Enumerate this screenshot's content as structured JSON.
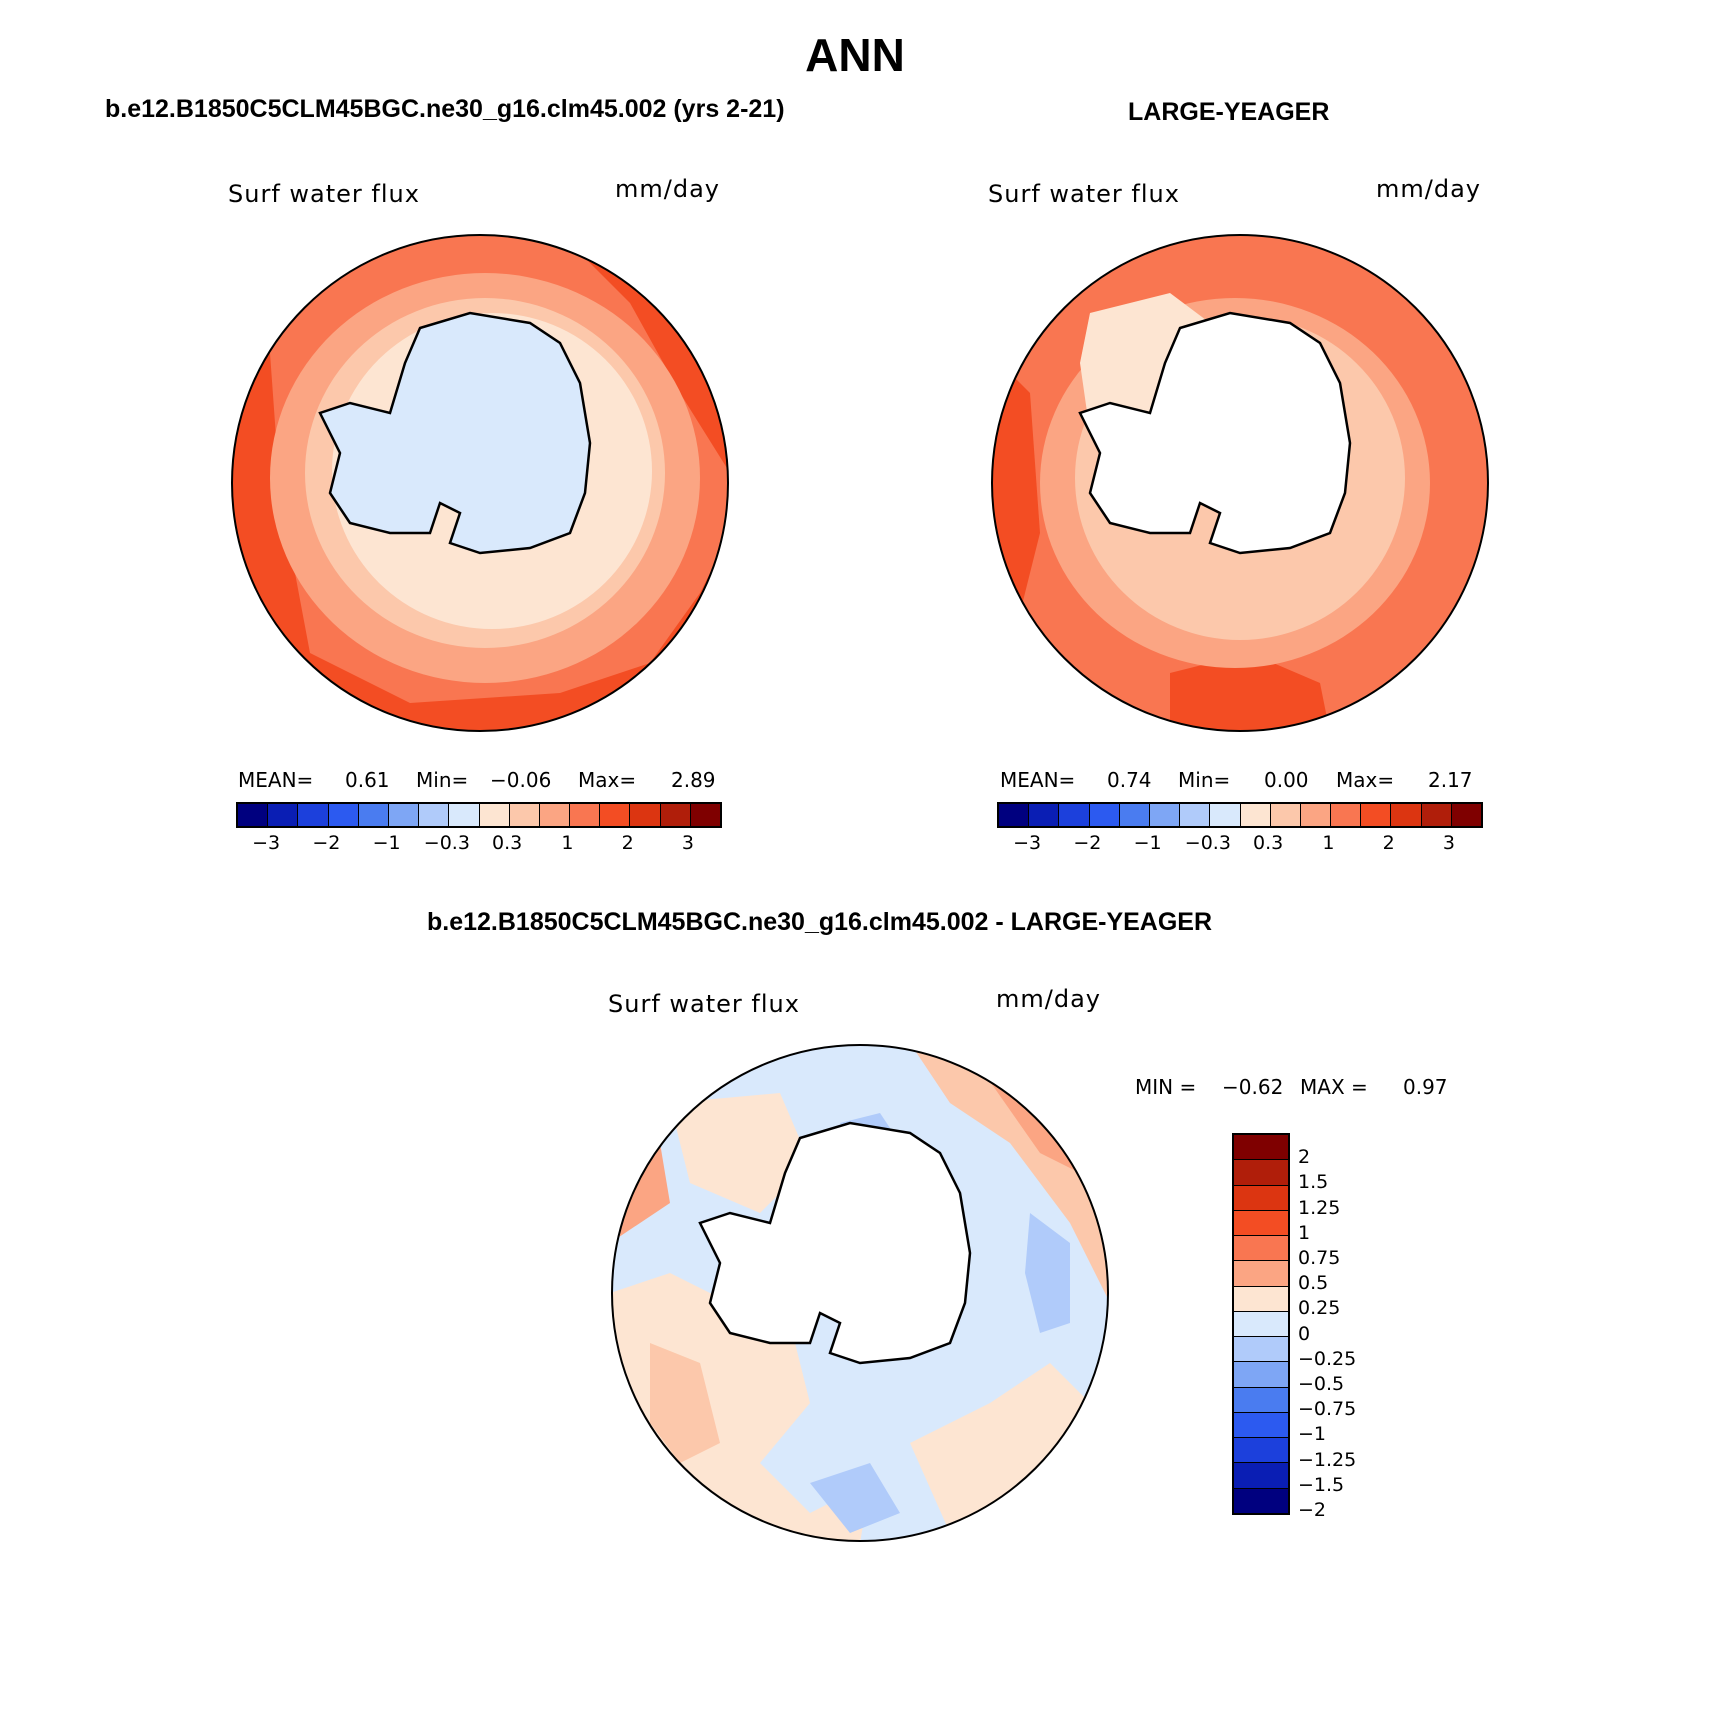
{
  "title": "ANN",
  "panels": [
    {
      "title": "b.e12.B1850C5CLM45BGC.ne30_g16.clm45.002 (yrs 2-21)",
      "variable": "Surf water flux",
      "units": "mm/day",
      "stats": {
        "mean_label": "MEAN=",
        "mean": "0.61",
        "min_label": "Min=",
        "min": "−0.06",
        "max_label": "Max=",
        "max": "2.89"
      },
      "ticks": [
        "−3",
        "−2",
        "−1",
        "−0.3",
        "0.3",
        "1",
        "2",
        "3"
      ]
    },
    {
      "title": "LARGE-YEAGER",
      "variable": "Surf water flux",
      "units": "mm/day",
      "stats": {
        "mean_label": "MEAN=",
        "mean": "0.74",
        "min_label": "Min=",
        "min": "0.00",
        "max_label": "Max=",
        "max": "2.17"
      },
      "ticks": [
        "−3",
        "−2",
        "−1",
        "−0.3",
        "0.3",
        "1",
        "2",
        "3"
      ]
    }
  ],
  "diff": {
    "title": "b.e12.B1850C5CLM45BGC.ne30_g16.clm45.002 - LARGE-YEAGER",
    "variable": "Surf water flux",
    "units": "mm/day",
    "minmax": {
      "min_label": "MIN =",
      "min": "−0.62",
      "max_label": "MAX =",
      "max": "0.97"
    },
    "ticks": [
      "2",
      "1.5",
      "1.25",
      "1",
      "0.75",
      "0.5",
      "0.25",
      "0",
      "−0.25",
      "−0.5",
      "−0.75",
      "−1",
      "−1.25",
      "−1.5",
      "−2"
    ]
  },
  "colors": {
    "full_scale": [
      "#00007f",
      "#0a1eb4",
      "#1c40dc",
      "#2c5af0",
      "#4a7cf0",
      "#7ea6f5",
      "#b0cbfa",
      "#d9e9fc",
      "#fde5d2",
      "#fcc8ab",
      "#fba583",
      "#f97651",
      "#f34d23",
      "#dc3511",
      "#b01e0a",
      "#7f0000"
    ],
    "diff_scale_top_to_bottom": [
      "#7f0000",
      "#b01e0a",
      "#dc3511",
      "#f34d23",
      "#f97651",
      "#fba583",
      "#fde5d2",
      "#d9e9fc",
      "#b0cbfa",
      "#7ea6f5",
      "#4a7cf0",
      "#2c5af0",
      "#1c40dc",
      "#0a1eb4",
      "#00007f"
    ],
    "land": "#ffffff",
    "coast": "#000000"
  }
}
